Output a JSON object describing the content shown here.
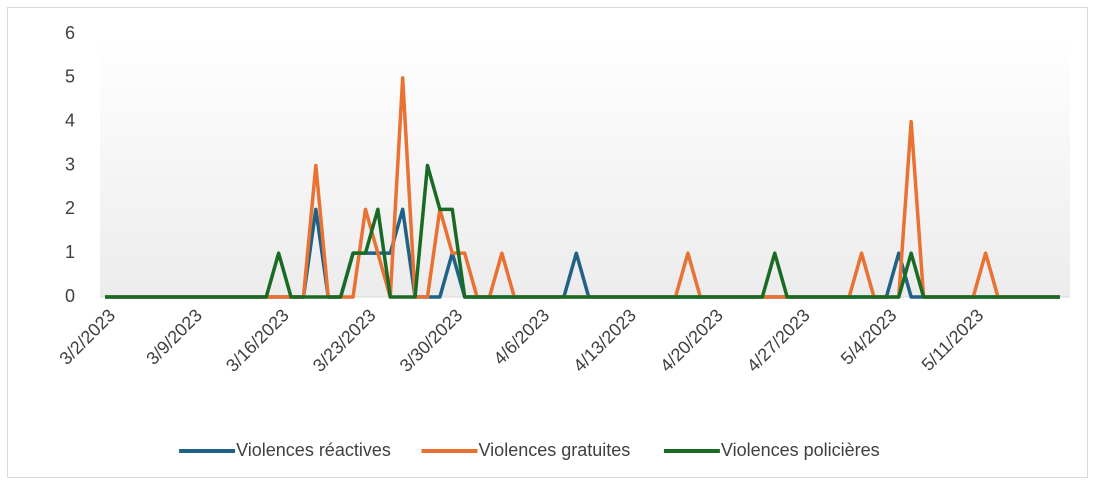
{
  "chart_data": {
    "type": "line",
    "categories": [
      "3/2/2023",
      null,
      null,
      null,
      null,
      null,
      null,
      "3/9/2023",
      null,
      null,
      null,
      null,
      null,
      null,
      "3/16/2023",
      null,
      null,
      null,
      null,
      null,
      null,
      "3/23/2023",
      null,
      null,
      null,
      null,
      null,
      null,
      "3/30/2023",
      null,
      null,
      null,
      null,
      null,
      null,
      "4/6/2023",
      null,
      null,
      null,
      null,
      null,
      null,
      "4/13/2023",
      null,
      null,
      null,
      null,
      null,
      null,
      "4/20/2023",
      null,
      null,
      null,
      null,
      null,
      null,
      "4/27/2023",
      null,
      null,
      null,
      null,
      null,
      null,
      "5/4/2023",
      null,
      null,
      null,
      null,
      null,
      null,
      "5/11/2023",
      null,
      null,
      null,
      null,
      null,
      null,
      null
    ],
    "series": [
      {
        "name": "Violences réactives",
        "color": "#1f6286",
        "values": [
          0,
          0,
          0,
          0,
          0,
          0,
          0,
          0,
          0,
          0,
          0,
          0,
          0,
          0,
          0,
          0,
          0,
          2,
          0,
          0,
          1,
          1,
          1,
          1,
          2,
          0,
          0,
          0,
          1,
          0,
          0,
          0,
          0,
          0,
          0,
          0,
          0,
          0,
          1,
          0,
          0,
          0,
          0,
          0,
          0,
          0,
          0,
          0,
          0,
          0,
          0,
          0,
          0,
          0,
          0,
          0,
          0,
          0,
          0,
          0,
          0,
          0,
          0,
          0,
          1,
          0,
          0,
          0,
          0,
          0,
          0,
          0,
          0,
          0,
          0,
          0,
          0,
          0
        ]
      },
      {
        "name": "Violences gratuites",
        "color": "#e97132",
        "values": [
          0,
          0,
          0,
          0,
          0,
          0,
          0,
          0,
          0,
          0,
          0,
          0,
          0,
          0,
          0,
          0,
          0,
          3,
          0,
          0,
          0,
          2,
          1,
          0,
          5,
          0,
          0,
          2,
          1,
          1,
          0,
          0,
          1,
          0,
          0,
          0,
          0,
          0,
          0,
          0,
          0,
          0,
          0,
          0,
          0,
          0,
          0,
          1,
          0,
          0,
          0,
          0,
          0,
          0,
          0,
          0,
          0,
          0,
          0,
          0,
          0,
          1,
          0,
          0,
          0,
          4,
          0,
          0,
          0,
          0,
          0,
          1,
          0,
          0,
          0,
          0,
          0,
          0
        ]
      },
      {
        "name": "Violences policières",
        "color": "#196b24",
        "values": [
          0,
          0,
          0,
          0,
          0,
          0,
          0,
          0,
          0,
          0,
          0,
          0,
          0,
          0,
          1,
          0,
          0,
          0,
          0,
          0,
          1,
          1,
          2,
          0,
          0,
          0,
          3,
          2,
          2,
          0,
          0,
          0,
          0,
          0,
          0,
          0,
          0,
          0,
          0,
          0,
          0,
          0,
          0,
          0,
          0,
          0,
          0,
          0,
          0,
          0,
          0,
          0,
          0,
          0,
          1,
          0,
          0,
          0,
          0,
          0,
          0,
          0,
          0,
          0,
          0,
          1,
          0,
          0,
          0,
          0,
          0,
          0,
          0,
          0,
          0,
          0,
          0,
          0
        ]
      }
    ],
    "ylim": [
      0,
      6
    ],
    "yticks": [
      0,
      1,
      2,
      3,
      4,
      5,
      6
    ],
    "legend": "bottom"
  }
}
